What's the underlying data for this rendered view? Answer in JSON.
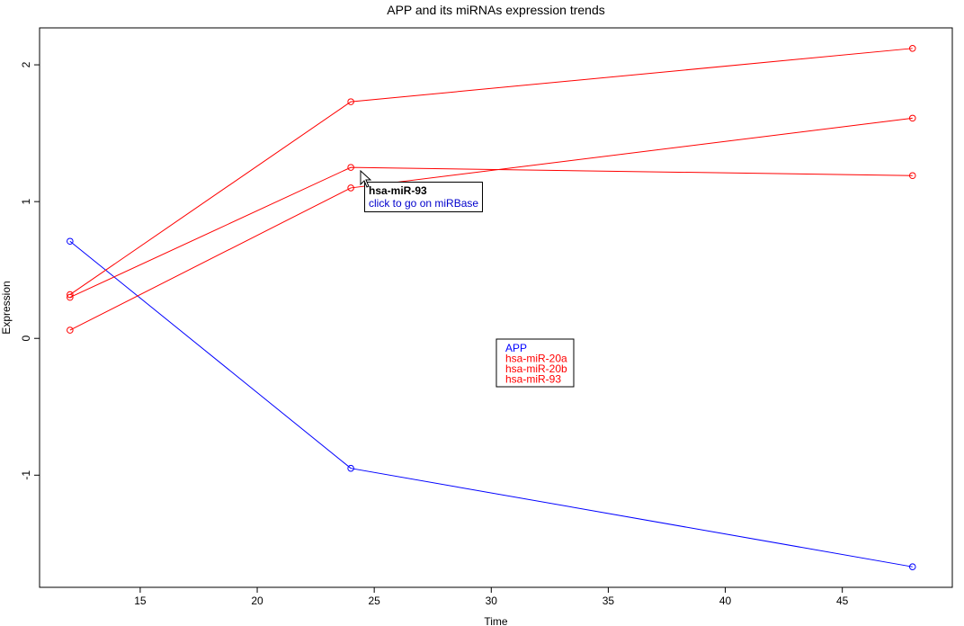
{
  "chart_data": {
    "type": "line",
    "title": "APP and its miRNAs expression trends",
    "xlabel": "Time",
    "ylabel": "Expression",
    "xlim": [
      10.7,
      49.7
    ],
    "ylim": [
      -1.82,
      2.27
    ],
    "x_ticks": [
      15,
      20,
      25,
      30,
      35,
      40,
      45
    ],
    "y_ticks": [
      -1,
      0,
      1,
      2
    ],
    "x": [
      12,
      24,
      48
    ],
    "series": [
      {
        "name": "APP",
        "values": [
          0.71,
          -0.95,
          -1.67
        ],
        "color": "#0000ff"
      },
      {
        "name": "hsa-miR-20a",
        "values": [
          0.32,
          1.73,
          2.12
        ],
        "color": "#ff0000"
      },
      {
        "name": "hsa-miR-20b",
        "values": [
          0.3,
          1.25,
          1.19
        ],
        "color": "#ff0000"
      },
      {
        "name": "hsa-miR-93",
        "values": [
          0.06,
          1.1,
          1.61
        ],
        "color": "#ff0000"
      }
    ],
    "legend": {
      "position": "center"
    },
    "grid": false,
    "marker": "open-circle"
  },
  "tooltip": {
    "title": "hsa-miR-93",
    "link": "click to go on miRBase"
  }
}
